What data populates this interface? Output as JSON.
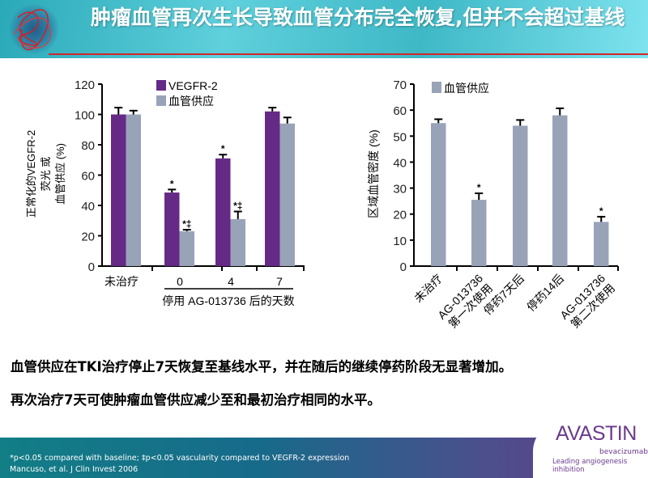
{
  "header": {
    "title": "肿瘤血管再次生长导致血管分布完全恢复,但并不会超过基线"
  },
  "chart_data": [
    {
      "type": "bar",
      "ylabel_lines": [
        "正常化的VEGFR-2",
        "荧光 或",
        "血管供应 (%)"
      ],
      "xlabel": "停用 AG-013736 后的天数",
      "categories": [
        "未治疗",
        "0",
        "4",
        "7"
      ],
      "ylim": [
        0,
        120
      ],
      "yticks": [
        0,
        20,
        40,
        60,
        80,
        100,
        120
      ],
      "legend_position": "top",
      "series": [
        {
          "name": "VEGFR-2",
          "color": "#652a86",
          "values": [
            100,
            48.5,
            71,
            102
          ],
          "errors": [
            4.5,
            2,
            2.5,
            2.5
          ],
          "annotations": [
            "",
            "*",
            "*",
            ""
          ]
        },
        {
          "name": "血管供应",
          "color": "#99a3b8",
          "values": [
            100,
            23,
            31,
            94
          ],
          "errors": [
            2.5,
            1,
            5,
            4
          ],
          "annotations": [
            "",
            "*‡",
            "*‡",
            ""
          ]
        }
      ]
    },
    {
      "type": "bar",
      "ylabel": "区域血管密度 (%)",
      "categories": [
        "未治疗",
        "AG-013736\n第一次使用",
        "停药7天后",
        "停药14后",
        "AG-013736\n第二次使用"
      ],
      "ylim": [
        0,
        70
      ],
      "yticks": [
        0,
        10,
        20,
        30,
        40,
        50,
        60,
        70
      ],
      "legend_position": "top-left",
      "series": [
        {
          "name": "血管供应",
          "color": "#99a3b8",
          "values": [
            55,
            25.5,
            54,
            58,
            17
          ],
          "errors": [
            1.5,
            2.5,
            2.2,
            2.7,
            2
          ],
          "annotations": [
            "",
            "*",
            "",
            "",
            "*"
          ]
        }
      ]
    }
  ],
  "body": {
    "line1": "血管供应在TKI治疗停止7天恢复至基线水平，并在随后的继续停药阶段无显著增加。",
    "line2": "再次治疗7天可使肿瘤血管供应减少至和最初治疗相同的水平。"
  },
  "footer": {
    "note": "*p<0.05 compared with baseline; ‡p<0.05 vascularity compared to VEGFR-2 expression",
    "citation": "Mancuso, et al. J Clin Invest 2006"
  },
  "brand": {
    "name": "AVASTIN",
    "sub": "bevacizumab",
    "tagline": "Leading angiogenesis inhibition"
  }
}
